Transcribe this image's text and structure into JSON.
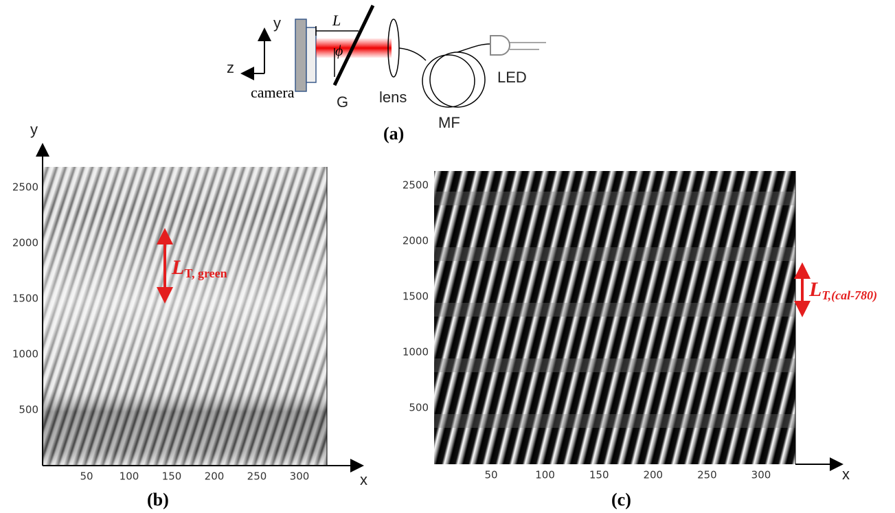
{
  "panel_a": {
    "labels": {
      "y": "y",
      "z": "z",
      "L": "L",
      "phi": "ϕ",
      "camera": "camera",
      "G": "G",
      "lens": "lens",
      "MF": "MF",
      "LED": "LED"
    },
    "caption": "(a)"
  },
  "panel_b": {
    "yticks": [
      "500",
      "1000",
      "1500",
      "2000",
      "2500"
    ],
    "xticks": [
      "50",
      "100",
      "150",
      "200",
      "250",
      "300"
    ],
    "x_label": "x",
    "y_label": "y",
    "annotation": {
      "main": "L",
      "sub": "T, green"
    },
    "caption": "(b)"
  },
  "panel_c": {
    "yticks": [
      "500",
      "1000",
      "1500",
      "2000",
      "2500"
    ],
    "xticks": [
      "50",
      "100",
      "150",
      "200",
      "250",
      "300"
    ],
    "x_label": "x",
    "annotation": {
      "main": "L",
      "sub": "T,(cal-780)"
    },
    "caption": "(c)"
  }
}
